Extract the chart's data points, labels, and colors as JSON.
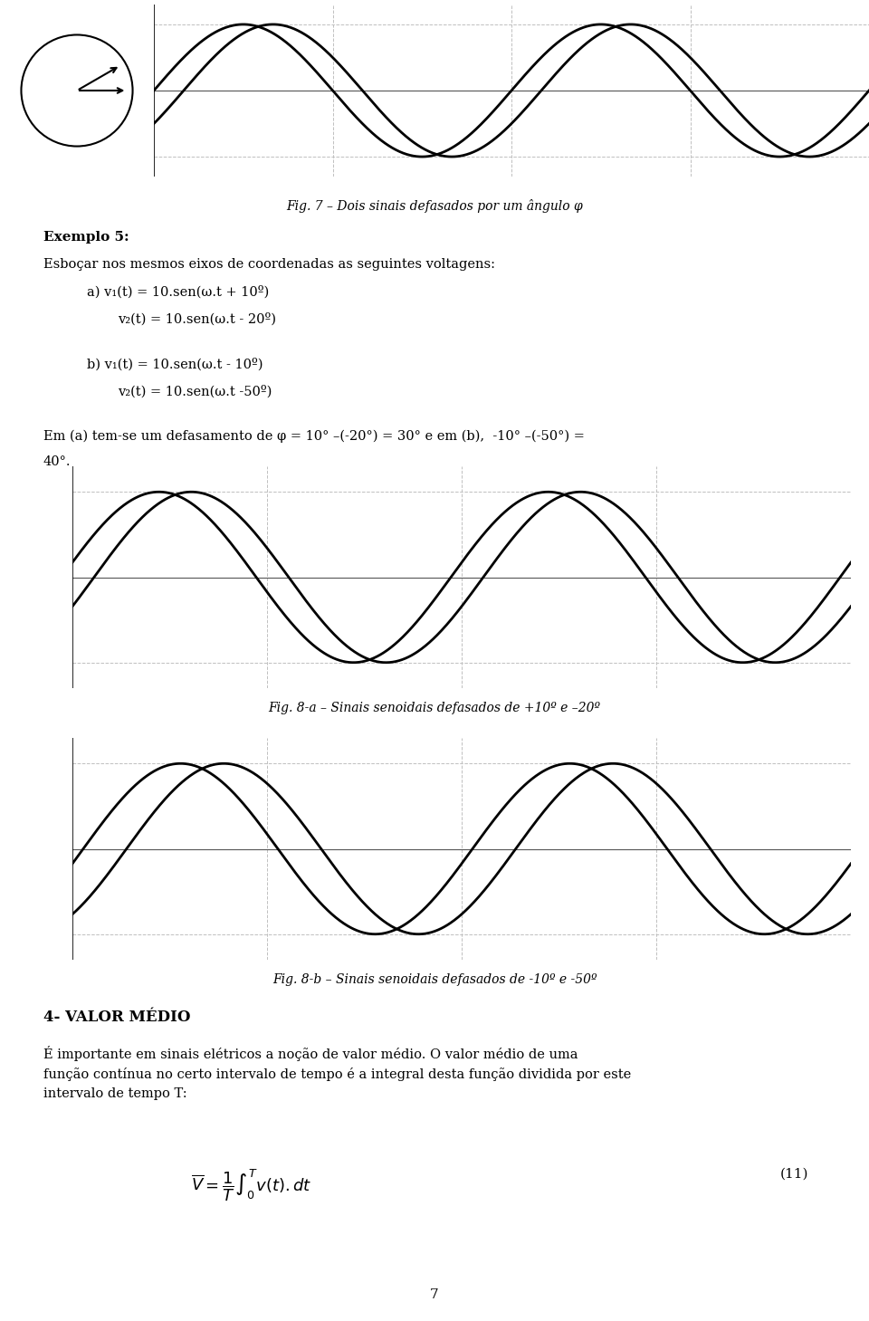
{
  "fig7_caption": "Fig. 7 – Dois sinais defasados por um ângulo φ",
  "fig8a_caption": "Fig. 8-a – Sinais senoidais defasados de +10º e –20º",
  "fig8b_caption": "Fig. 8-b – Sinais senoidais defasados de -10º e -50º",
  "section_title": "4- VALOR MÉDIO",
  "example_title": "Exemplo 5:",
  "line1_text": "Esboçar nos mesmos eixos de coordenadas as seguintes voltagens:",
  "line_a1": "a) v₁(t) = 10.sen(ω.t + 10º)",
  "line_a2": "   v₂(t) = 10.sen(ω.t - 20º)",
  "line_b1": "b) v₁(t) = 10.sen(ω.t - 10º)",
  "line_b2": "   v₂(t) = 10.sen(ω.t -50º)",
  "explanation": "Em (a) tem-se um defasamento de φ = 10° –(-20°) = 30° e em (b),  -10° –(-50°) =",
  "explanation2": "40°.",
  "valor_medio_text": "É importante em sinais elétricos a noção de valor médio. O valor médio de uma função contínua no certo intervalo de tempo é a integral desta função dividida por este intervalo de tempo T:",
  "formula": "$\\overline{V} = \\frac{1}{T}\\int_0^T v(t).dt$",
  "formula_number": "(11)",
  "background_color": "#ffffff",
  "line_color": "#000000",
  "grid_color": "#c0c0c0",
  "phase_a_v1": 10,
  "phase_a_v2": -20,
  "phase_b_v1": -10,
  "phase_b_v2": -50,
  "amplitude": 1.0,
  "page_number": "7"
}
